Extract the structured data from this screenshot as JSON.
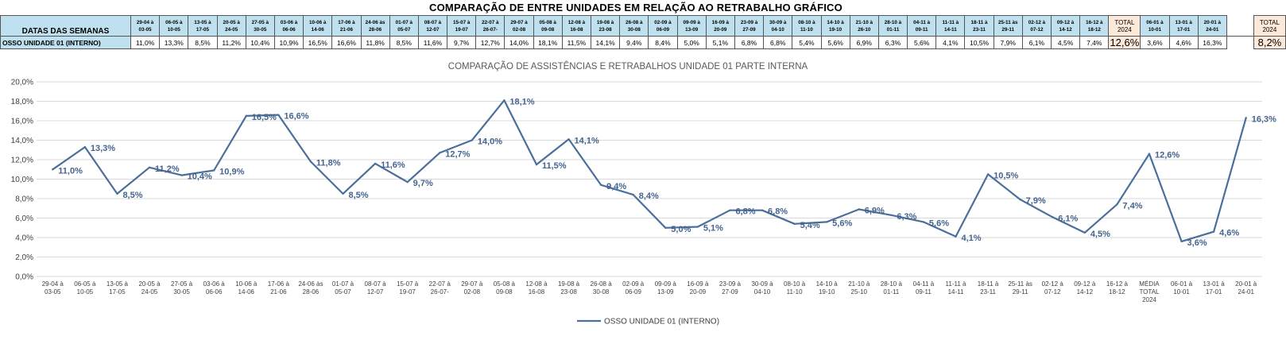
{
  "title": "COMPARAÇÃO DE ENTRE UNIDADES EM RELAÇÃO AO RETRABALHO GRÁFICO",
  "table": {
    "header_label": "DATAS DAS SEMANAS",
    "row_label": "OSSO UNIDADE 01 (INTERNO)",
    "columns": [
      {
        "line1": "29-04 à",
        "line2": "03-05",
        "value": "11,0%"
      },
      {
        "line1": "06-05 à",
        "line2": "10-05",
        "value": "13,3%"
      },
      {
        "line1": "13-05 à",
        "line2": "17-05",
        "value": "8,5%"
      },
      {
        "line1": "20-05 à",
        "line2": "24-05",
        "value": "11,2%"
      },
      {
        "line1": "27-05 à",
        "line2": "30-05",
        "value": "10,4%"
      },
      {
        "line1": "03-06 à",
        "line2": "06-06",
        "value": "10,9%"
      },
      {
        "line1": "10-06 à",
        "line2": "14-06",
        "value": "16,5%"
      },
      {
        "line1": "17-06 à",
        "line2": "21-06",
        "value": "16,6%"
      },
      {
        "line1": "24-06 às",
        "line2": "28-06",
        "value": "11,8%"
      },
      {
        "line1": "01-07 à",
        "line2": "05-07",
        "value": "8,5%"
      },
      {
        "line1": "08-07 à",
        "line2": "12-07",
        "value": "11,6%"
      },
      {
        "line1": "15-07 à",
        "line2": "19-07",
        "value": "9,7%"
      },
      {
        "line1": "22-07 à",
        "line2": "26-07-",
        "value": "12,7%"
      },
      {
        "line1": "29-07 à",
        "line2": "02-08",
        "value": "14,0%"
      },
      {
        "line1": "05-08 à",
        "line2": "09-08",
        "value": "18,1%"
      },
      {
        "line1": "12-08 à",
        "line2": "16-08",
        "value": "11,5%"
      },
      {
        "line1": "19-08 à",
        "line2": "23-08",
        "value": "14,1%"
      },
      {
        "line1": "26-08 à",
        "line2": "30-08",
        "value": "9,4%"
      },
      {
        "line1": "02-09 à",
        "line2": "06-09",
        "value": "8,4%"
      },
      {
        "line1": "09-09 à",
        "line2": "13-09",
        "value": "5,0%"
      },
      {
        "line1": "16-09 à",
        "line2": "20-09",
        "value": "5,1%"
      },
      {
        "line1": "23-09 à",
        "line2": "27-09",
        "value": "6,8%"
      },
      {
        "line1": "30-09 à",
        "line2": "04-10",
        "value": "6,8%"
      },
      {
        "line1": "08-10 à",
        "line2": "11-10",
        "value": "5,4%"
      },
      {
        "line1": "14-10 à",
        "line2": "19-10",
        "value": "5,6%"
      },
      {
        "line1": "21-10 à",
        "line2": "26-10",
        "value": "6,9%"
      },
      {
        "line1": "28-10 à",
        "line2": "01-11",
        "value": "6,3%"
      },
      {
        "line1": "04-11 à",
        "line2": "09-11",
        "value": "5,6%"
      },
      {
        "line1": "11-11 à",
        "line2": "14-11",
        "value": "4,1%"
      },
      {
        "line1": "18-11 à",
        "line2": "23-11",
        "value": "10,5%"
      },
      {
        "line1": "25-11 às",
        "line2": "29-11",
        "value": "7,9%"
      },
      {
        "line1": "02-12 à",
        "line2": "07-12",
        "value": "6,1%"
      },
      {
        "line1": "09-12 à",
        "line2": "14-12",
        "value": "4,5%"
      },
      {
        "line1": "16-12 à",
        "line2": "18-12",
        "value": "7,4%"
      },
      {
        "line1": "TOTAL",
        "line2": "2024",
        "value": "12,6%",
        "kind": "total"
      },
      {
        "line1": "06-01 à",
        "line2": "10-01",
        "value": "3,6%"
      },
      {
        "line1": "13-01 à",
        "line2": "17-01",
        "value": "4,6%"
      },
      {
        "line1": "20-01 à",
        "line2": "24-01",
        "value": "16,3%"
      },
      {
        "line1": "",
        "line2": "",
        "value": "",
        "kind": "gap"
      },
      {
        "line1": "TOTAL",
        "line2": "2024",
        "value": "8,2%",
        "kind": "total"
      }
    ]
  },
  "chart_data": {
    "type": "line",
    "title": "COMPARAÇÃO DE ASSISTÊNCIAS E RETRABALHOS UNIDADE 01 PARTE INTERNA",
    "xlabel": "",
    "ylabel": "",
    "ylim": [
      0,
      20
    ],
    "ytick_step": 2,
    "yticks": [
      "0,0%",
      "2,0%",
      "4,0%",
      "6,0%",
      "8,0%",
      "10,0%",
      "12,0%",
      "14,0%",
      "16,0%",
      "18,0%",
      "20,0%"
    ],
    "grid": true,
    "legend_position": "bottom",
    "color": "#4a6f9a",
    "categories": [
      [
        "29-04 à",
        "03-05"
      ],
      [
        "06-05 à",
        "10-05"
      ],
      [
        "13-05 à",
        "17-05"
      ],
      [
        "20-05 à",
        "24-05"
      ],
      [
        "27-05 à",
        "30-05"
      ],
      [
        "03-06 à",
        "06-06"
      ],
      [
        "10-06 à",
        "14-06"
      ],
      [
        "17-06 à",
        "21-06"
      ],
      [
        "24-06 às",
        "28-06"
      ],
      [
        "01-07 à",
        "05-07"
      ],
      [
        "08-07 à",
        "12-07"
      ],
      [
        "15-07 à",
        "19-07"
      ],
      [
        "22-07 à",
        "26-07-"
      ],
      [
        "29-07 à",
        "02-08"
      ],
      [
        "05-08 à",
        "09-08"
      ],
      [
        "12-08 à",
        "16-08"
      ],
      [
        "19-08 à",
        "23-08"
      ],
      [
        "26-08 à",
        "30-08"
      ],
      [
        "02-09 à",
        "06-09"
      ],
      [
        "09-09 à",
        "13-09"
      ],
      [
        "16-09 à",
        "20-09"
      ],
      [
        "23-09 à",
        "27-09"
      ],
      [
        "30-09 à",
        "04-10"
      ],
      [
        "08-10 à",
        "11-10"
      ],
      [
        "14-10 à",
        "19-10"
      ],
      [
        "21-10 à",
        "25-10"
      ],
      [
        "28-10 à",
        "01-11"
      ],
      [
        "04-11 à",
        "09-11"
      ],
      [
        "11-11 à",
        "14-11"
      ],
      [
        "18-11 à",
        "23-11"
      ],
      [
        "25-11 às",
        "29-11"
      ],
      [
        "02-12 à",
        "07-12"
      ],
      [
        "09-12 à",
        "14-12"
      ],
      [
        "16-12 à",
        "18-12"
      ],
      [
        "MÉDIA",
        "TOTAL",
        "2024"
      ],
      [
        "06-01 à",
        "10-01"
      ],
      [
        "13-01 à",
        "17-01"
      ],
      [
        "20-01 à",
        "24-01"
      ]
    ],
    "series": [
      {
        "name": "OSSO UNIDADE 01 (INTERNO)",
        "values": [
          11.0,
          13.3,
          8.5,
          11.2,
          10.4,
          10.9,
          16.5,
          16.6,
          11.8,
          8.5,
          11.6,
          9.7,
          12.7,
          14.0,
          18.1,
          11.5,
          14.1,
          9.4,
          8.4,
          5.0,
          5.1,
          6.8,
          6.8,
          5.4,
          5.6,
          6.9,
          6.3,
          5.6,
          4.1,
          10.5,
          7.9,
          6.1,
          4.5,
          7.4,
          12.6,
          3.6,
          4.6,
          16.3
        ],
        "labels": [
          "11,0%",
          "13,3%",
          "8,5%",
          "11,2%",
          "10,4%",
          "10,9%",
          "16,5%",
          "16,6%",
          "11,8%",
          "8,5%",
          "11,6%",
          "9,7%",
          "12,7%",
          "14,0%",
          "18,1%",
          "11,5%",
          "14,1%",
          "9,4%",
          "8,4%",
          "5,0%",
          "5,1%",
          "6,8%",
          "6,8%",
          "5,4%",
          "5,6%",
          "6,9%",
          "6,3%",
          "5,6%",
          "4,1%",
          "10,5%",
          "7,9%",
          "6,1%",
          "4,5%",
          "7,4%",
          "12,6%",
          "3,6%",
          "4,6%",
          "16,3%"
        ]
      }
    ]
  }
}
